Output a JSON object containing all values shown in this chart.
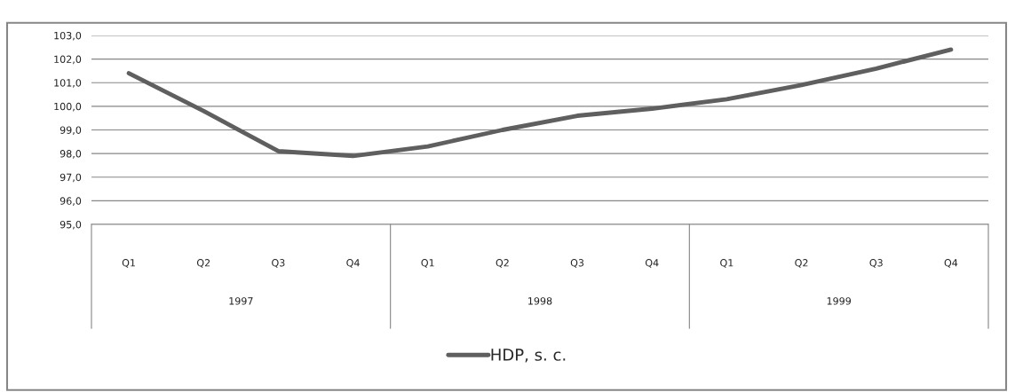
{
  "chart_data": {
    "type": "line",
    "categories": [
      "Q1",
      "Q2",
      "Q3",
      "Q4",
      "Q1",
      "Q2",
      "Q3",
      "Q4",
      "Q1",
      "Q2",
      "Q3",
      "Q4"
    ],
    "series": [
      {
        "name": "HDP, s. c.",
        "color": "#5f5f5f",
        "values": [
          101.4,
          99.8,
          98.1,
          97.9,
          98.3,
          99.0,
          99.6,
          99.9,
          100.3,
          100.9,
          101.6,
          102.4
        ]
      }
    ],
    "annotations": [
      "1997",
      "1998",
      "1999"
    ],
    "ylim": [
      95,
      103
    ],
    "yticks": [
      {
        "value": 95,
        "label": "95,0"
      },
      {
        "value": 96,
        "label": "96,0"
      },
      {
        "value": 97,
        "label": "97,0"
      },
      {
        "value": 98,
        "label": "98,0"
      },
      {
        "value": 99,
        "label": "99,0"
      },
      {
        "value": 100,
        "label": "100,0"
      },
      {
        "value": 101,
        "label": "101,0"
      },
      {
        "value": 102,
        "label": "102,0"
      },
      {
        "value": 103,
        "label": "103,0"
      }
    ],
    "grid": "y",
    "legend": "bottom",
    "marker": "none",
    "line_style": "solid"
  }
}
